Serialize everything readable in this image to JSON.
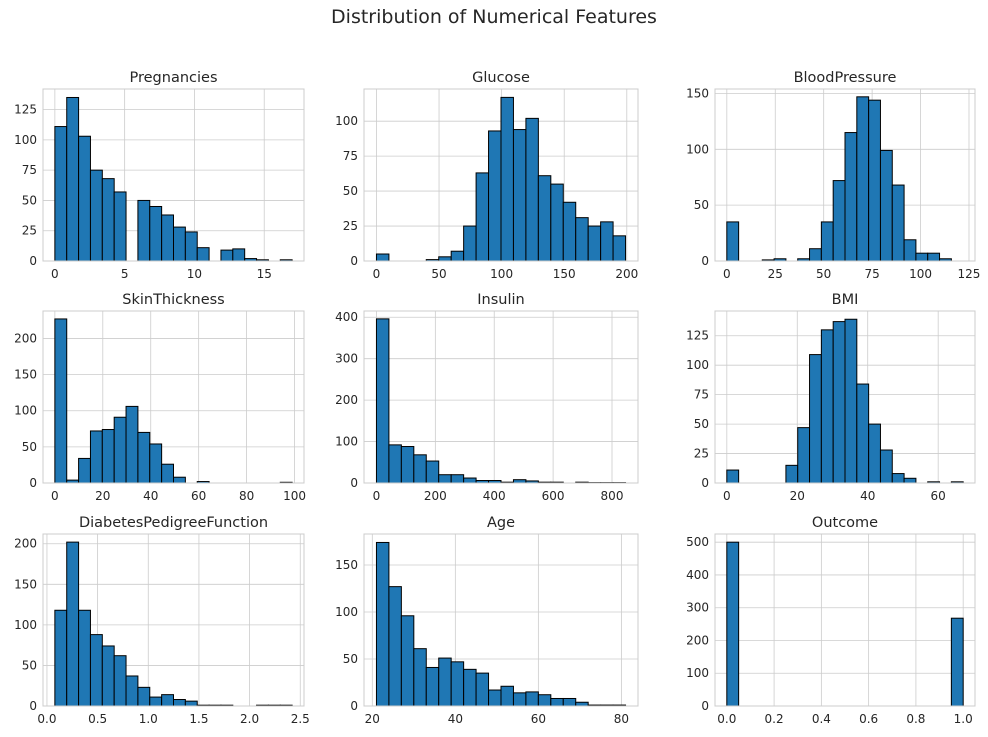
{
  "figure": {
    "title": "Distribution of Numerical Features"
  },
  "colors": {
    "bar": "#1f77b4",
    "edge": "#000000",
    "grid": "#cccccc",
    "frame": "#cccccc",
    "text": "#262626"
  },
  "chart_data": [
    {
      "type": "bar",
      "title": "Pregnancies",
      "xlabel": "",
      "ylabel": "",
      "bins": {
        "start": 0,
        "end": 17,
        "count": 20
      },
      "counts": [
        111,
        135,
        103,
        75,
        68,
        57,
        0,
        50,
        45,
        38,
        28,
        24,
        11,
        0,
        9,
        10,
        2,
        1,
        0,
        1
      ],
      "xlim": [
        -0.85,
        17.85
      ],
      "ylim": [
        0,
        142
      ],
      "xticks": [
        0,
        5,
        10,
        15
      ],
      "xtick_labels": [
        "0",
        "5",
        "10",
        "15"
      ],
      "yticks": [
        0,
        25,
        50,
        75,
        100,
        125
      ],
      "ytick_labels": [
        "0",
        "25",
        "50",
        "75",
        "100",
        "125"
      ]
    },
    {
      "type": "bar",
      "title": "Glucose",
      "xlabel": "",
      "ylabel": "",
      "bins": {
        "start": 0,
        "end": 199,
        "count": 20
      },
      "counts": [
        5,
        0,
        0,
        0,
        1,
        3,
        7,
        25,
        63,
        93,
        117,
        94,
        102,
        61,
        55,
        42,
        31,
        25,
        28,
        18
      ],
      "xlim": [
        -9.95,
        208.95
      ],
      "ylim": [
        0,
        123
      ],
      "xticks": [
        0,
        50,
        100,
        150,
        200
      ],
      "xtick_labels": [
        "0",
        "50",
        "100",
        "150",
        "200"
      ],
      "yticks": [
        0,
        25,
        50,
        75,
        100
      ],
      "ytick_labels": [
        "0",
        "25",
        "50",
        "75",
        "100"
      ]
    },
    {
      "type": "bar",
      "title": "BloodPressure",
      "xlabel": "",
      "ylabel": "",
      "bins": {
        "start": 0,
        "end": 122,
        "count": 20
      },
      "counts": [
        35,
        0,
        0,
        1,
        2,
        0,
        2,
        11,
        35,
        72,
        115,
        147,
        144,
        99,
        68,
        19,
        7,
        7,
        2,
        0
      ],
      "xlim": [
        -6.1,
        128.1
      ],
      "ylim": [
        0,
        154
      ],
      "xticks": [
        0,
        25,
        50,
        75,
        100,
        125
      ],
      "xtick_labels": [
        "0",
        "25",
        "50",
        "75",
        "100",
        "125"
      ],
      "yticks": [
        0,
        50,
        100,
        150
      ],
      "ytick_labels": [
        "0",
        "50",
        "100",
        "150"
      ]
    },
    {
      "type": "bar",
      "title": "SkinThickness",
      "xlabel": "",
      "ylabel": "",
      "bins": {
        "start": 0,
        "end": 99,
        "count": 20
      },
      "counts": [
        227,
        4,
        34,
        72,
        74,
        91,
        106,
        70,
        54,
        26,
        8,
        0,
        2,
        0,
        0,
        0,
        0,
        0,
        0,
        1
      ],
      "xlim": [
        -4.95,
        103.95
      ],
      "ylim": [
        0,
        238
      ],
      "xticks": [
        0,
        20,
        40,
        60,
        80,
        100
      ],
      "xtick_labels": [
        "0",
        "20",
        "40",
        "60",
        "80",
        "100"
      ],
      "yticks": [
        0,
        50,
        100,
        150,
        200
      ],
      "ytick_labels": [
        "0",
        "50",
        "100",
        "150",
        "200"
      ]
    },
    {
      "type": "bar",
      "title": "Insulin",
      "xlabel": "",
      "ylabel": "",
      "bins": {
        "start": 0,
        "end": 846,
        "count": 20
      },
      "counts": [
        396,
        92,
        88,
        68,
        53,
        20,
        20,
        12,
        6,
        6,
        2,
        8,
        5,
        2,
        2,
        0,
        2,
        1,
        1,
        1
      ],
      "xlim": [
        -42.3,
        888.3
      ],
      "ylim": [
        0,
        415
      ],
      "xticks": [
        0,
        200,
        400,
        600,
        800
      ],
      "xtick_labels": [
        "0",
        "200",
        "400",
        "600",
        "800"
      ],
      "yticks": [
        0,
        100,
        200,
        300,
        400
      ],
      "ytick_labels": [
        "0",
        "100",
        "200",
        "300",
        "400"
      ]
    },
    {
      "type": "bar",
      "title": "BMI",
      "xlabel": "",
      "ylabel": "",
      "bins": {
        "start": 0,
        "end": 67.1,
        "count": 20
      },
      "counts": [
        11,
        0,
        0,
        0,
        0,
        15,
        47,
        109,
        130,
        137,
        139,
        84,
        50,
        28,
        8,
        4,
        0,
        1,
        0,
        1
      ],
      "xlim": [
        -3.355,
        70.455
      ],
      "ylim": [
        0,
        146
      ],
      "xticks": [
        0,
        20,
        40,
        60
      ],
      "xtick_labels": [
        "0",
        "20",
        "40",
        "60"
      ],
      "yticks": [
        0,
        25,
        50,
        75,
        100,
        125
      ],
      "ytick_labels": [
        "0",
        "25",
        "50",
        "75",
        "100",
        "125"
      ]
    },
    {
      "type": "bar",
      "title": "DiabetesPedigreeFunction",
      "xlabel": "",
      "ylabel": "",
      "bins": {
        "start": 0.078,
        "end": 2.42,
        "count": 20
      },
      "counts": [
        118,
        202,
        118,
        88,
        74,
        62,
        37,
        23,
        11,
        14,
        8,
        6,
        1,
        1,
        1,
        0,
        0,
        1,
        1,
        1
      ],
      "xlim": [
        -0.039,
        2.537
      ],
      "ylim": [
        0,
        212
      ],
      "xticks": [
        0.0,
        0.5,
        1.0,
        1.5,
        2.0,
        2.5
      ],
      "xtick_labels": [
        "0.0",
        "0.5",
        "1.0",
        "1.5",
        "2.0",
        "2.5"
      ],
      "yticks": [
        0,
        50,
        100,
        150,
        200
      ],
      "ytick_labels": [
        "0",
        "50",
        "100",
        "150",
        "200"
      ]
    },
    {
      "type": "bar",
      "title": "Age",
      "xlabel": "",
      "ylabel": "",
      "bins": {
        "start": 21,
        "end": 81,
        "count": 20
      },
      "counts": [
        174,
        127,
        96,
        61,
        41,
        51,
        47,
        39,
        35,
        17,
        21,
        14,
        15,
        12,
        8,
        8,
        4,
        1,
        1,
        1
      ],
      "xlim": [
        18,
        84
      ],
      "ylim": [
        0,
        183
      ],
      "xticks": [
        20,
        40,
        60,
        80
      ],
      "xtick_labels": [
        "20",
        "40",
        "60",
        "80"
      ],
      "yticks": [
        0,
        50,
        100,
        150
      ],
      "ytick_labels": [
        "0",
        "50",
        "100",
        "150"
      ]
    },
    {
      "type": "bar",
      "title": "Outcome",
      "xlabel": "",
      "ylabel": "",
      "bins": {
        "start": 0,
        "end": 1,
        "count": 20
      },
      "counts": [
        500,
        0,
        0,
        0,
        0,
        0,
        0,
        0,
        0,
        0,
        0,
        0,
        0,
        0,
        0,
        0,
        0,
        0,
        0,
        268
      ],
      "xlim": [
        -0.05,
        1.05
      ],
      "ylim": [
        0,
        525
      ],
      "xticks": [
        0.0,
        0.2,
        0.4,
        0.6,
        0.8,
        1.0
      ],
      "xtick_labels": [
        "0.0",
        "0.2",
        "0.4",
        "0.6",
        "0.8",
        "1.0"
      ],
      "yticks": [
        0,
        100,
        200,
        300,
        400,
        500
      ],
      "ytick_labels": [
        "0",
        "100",
        "200",
        "300",
        "400",
        "500"
      ]
    }
  ]
}
